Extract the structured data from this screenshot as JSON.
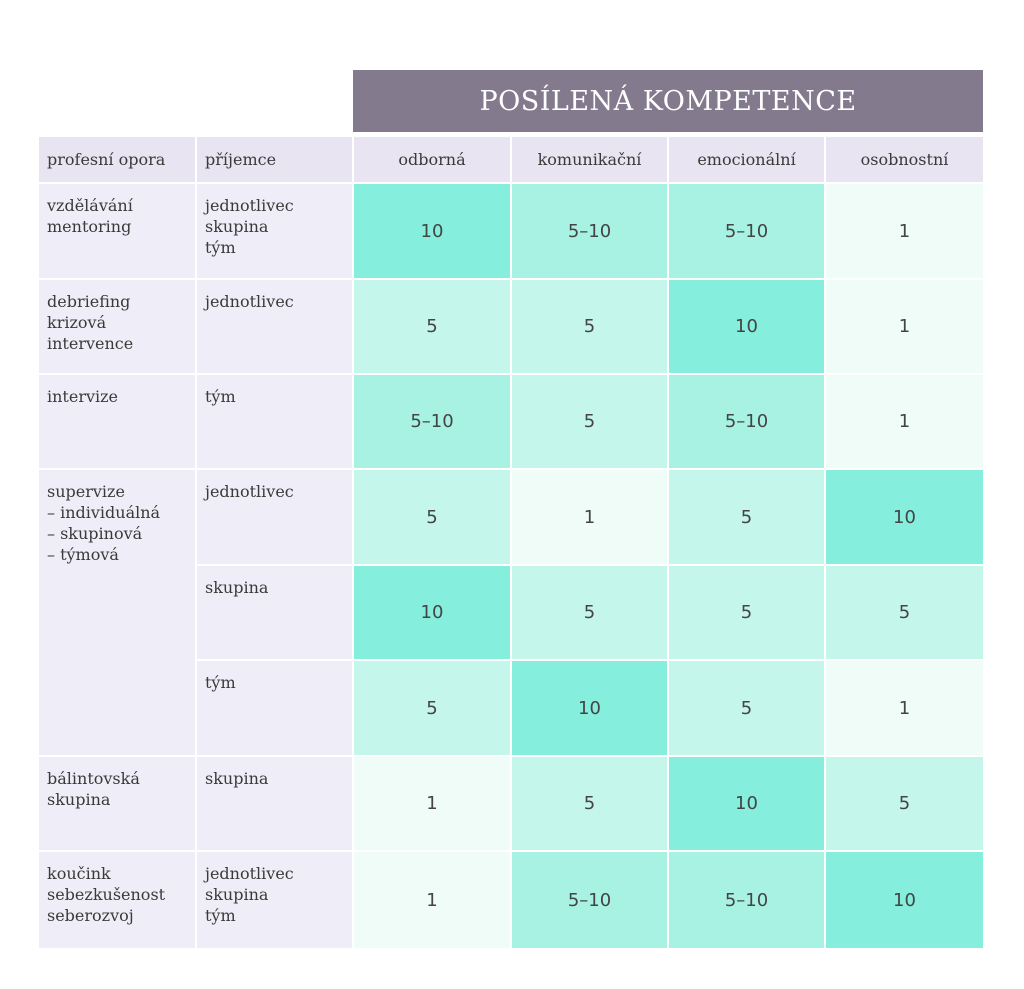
{
  "banner": "POSÍLENÁ KOMPETENCE",
  "headers": {
    "opora": "profesní opora",
    "prijemce": "příjemce",
    "competences": [
      "odborná",
      "komunikační",
      "emocionální",
      "osobnostní"
    ]
  },
  "groups": [
    {
      "name": "vzdělávání\nmentoring",
      "rows": [
        {
          "recipient": "jednotlivec\nskupina\ntým",
          "values": [
            "10",
            "5–10",
            "5–10",
            "1"
          ]
        }
      ]
    },
    {
      "name": "debriefing\nkrizová\nintervence",
      "rows": [
        {
          "recipient": "jednotlivec",
          "values": [
            "5",
            "5",
            "10",
            "1"
          ]
        }
      ]
    },
    {
      "name": "intervize",
      "rows": [
        {
          "recipient": "tým",
          "values": [
            "5–10",
            "5",
            "5–10",
            "1"
          ]
        }
      ]
    },
    {
      "name": "supervize\n– individuálná\n– skupinová\n– týmová",
      "rows": [
        {
          "recipient": "jednotlivec",
          "values": [
            "5",
            "1",
            "5",
            "10"
          ]
        },
        {
          "recipient": "skupina",
          "values": [
            "10",
            "5",
            "5",
            "5"
          ]
        },
        {
          "recipient": "tým",
          "values": [
            "5",
            "10",
            "5",
            "1"
          ]
        }
      ]
    },
    {
      "name": "bálintovská\nskupina",
      "rows": [
        {
          "recipient": "skupina",
          "values": [
            "1",
            "5",
            "10",
            "5"
          ]
        }
      ]
    },
    {
      "name": "koučink\nsebezkušenost\nseberozvoj",
      "rows": [
        {
          "recipient": "jednotlivec\nskupina\ntým",
          "values": [
            "1",
            "5–10",
            "5–10",
            "10"
          ]
        }
      ]
    }
  ],
  "colors": {
    "banner": "#837a8e",
    "header": "#e8e4f1",
    "label": "#efedf7",
    "level_1": "#effcf8",
    "level_5": "#c4f6ec",
    "level_5_10": "#a8f2e4",
    "level_10": "#85eedd"
  }
}
